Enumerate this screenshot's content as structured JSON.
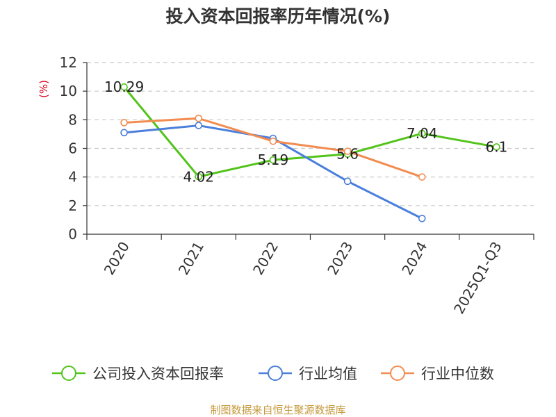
{
  "chart_data": {
    "type": "line",
    "title": "投入资本回报率历年情况(%)",
    "ylabel": "(%)",
    "categories": [
      "2020",
      "2021",
      "2022",
      "2023",
      "2024",
      "2025Q1-Q3"
    ],
    "ylim": [
      0,
      12
    ],
    "yticks": [
      0,
      2,
      4,
      6,
      8,
      10,
      12
    ],
    "grid": true,
    "legend_position": "bottom",
    "series": [
      {
        "name": "公司投入资本回报率",
        "color": "#52c41a",
        "values": [
          10.29,
          4.02,
          5.19,
          5.6,
          7.04,
          6.1
        ],
        "labels": [
          "10.29",
          "4.02",
          "5.19",
          "5.6",
          "7.04",
          "6.1"
        ]
      },
      {
        "name": "行业均值",
        "color": "#4a7fdb",
        "values": [
          7.1,
          7.6,
          6.7,
          3.7,
          1.1,
          null
        ]
      },
      {
        "name": "行业中位数",
        "color": "#f28c50",
        "values": [
          7.8,
          8.1,
          6.5,
          5.8,
          4.0,
          null
        ]
      }
    ]
  },
  "source": "制图数据来自恒生聚源数据库"
}
